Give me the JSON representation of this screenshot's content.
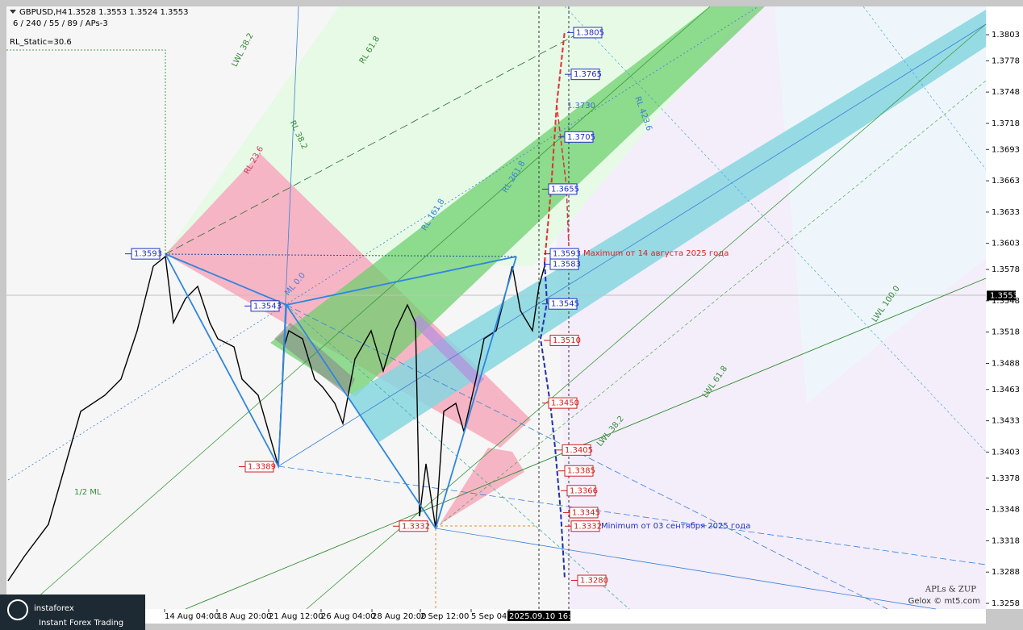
{
  "header": {
    "symbol": "GBPUSD,H4",
    "ohlc": "1.3528 1.3553 1.3524 1.3553",
    "settings": "6 / 240 / 55 / 89 / APs-3",
    "static": "RL_Static=30.6"
  },
  "price_axis": {
    "ticks": [
      "1.3803",
      "1.3778",
      "1.3748",
      "1.3718",
      "1.3693",
      "1.3663",
      "1.3633",
      "1.3603",
      "1.3578",
      "1.3548",
      "1.3518",
      "1.3488",
      "1.3463",
      "1.3433",
      "1.3403",
      "1.3378",
      "1.3348",
      "1.3318",
      "1.3288",
      "1.3258"
    ],
    "current": "1.3553"
  },
  "time_axis": [
    "14 Aug 04:00",
    "18 Aug 20:00",
    "21 Aug 12:00",
    "26 Aug 04:00",
    "28 Aug 20:00",
    "2 Sep 12:00",
    "5 Sep 04:00",
    "2025.09.10 16:47"
  ],
  "levels": [
    {
      "label": "1.3805",
      "color": "blue"
    },
    {
      "label": "1.3765",
      "color": "blue"
    },
    {
      "label": "1.3705",
      "color": "blue"
    },
    {
      "label": "1.3655",
      "color": "blue"
    },
    {
      "label": "1.3593",
      "color": "blue"
    },
    {
      "label": "1.3583",
      "color": "blue"
    },
    {
      "label": "1.3545",
      "color": "blue"
    },
    {
      "label": "1.3593",
      "color": "blue"
    },
    {
      "label": "1.3543",
      "color": "blue"
    },
    {
      "label": "1.3510",
      "color": "red"
    },
    {
      "label": "1.3450",
      "color": "red"
    },
    {
      "label": "1.3405",
      "color": "red"
    },
    {
      "label": "1.3385",
      "color": "red"
    },
    {
      "label": "1.3366",
      "color": "red"
    },
    {
      "label": "1.3345",
      "color": "red"
    },
    {
      "label": "1.3332",
      "color": "red"
    },
    {
      "label": "1.3280",
      "color": "red"
    },
    {
      "label": "1.3389",
      "color": "red"
    },
    {
      "label": "1.3332",
      "color": "red"
    }
  ],
  "annotations": {
    "maximum": "Maximum от 14 августа 2025 года",
    "minimum": "Minimum от 03 сентября 2025 года",
    "target": "1.3730",
    "half_ml": "1/2 ML",
    "author": "APLs & ZUP",
    "copyright": "Gelox © mt5.com"
  },
  "line_labels": [
    "LWL 38.2",
    "RL 61.8",
    "RL 38.2",
    "RL 23.6",
    "RL 261.8",
    "RL 161.8",
    "ML 0.0",
    "LWL 61.8",
    "LWL 100.0",
    "RL 423.6",
    "LWL 38.2",
    "1/2 ML"
  ],
  "brand": {
    "name": "instaforex",
    "tagline": "Instant Forex Trading"
  }
}
